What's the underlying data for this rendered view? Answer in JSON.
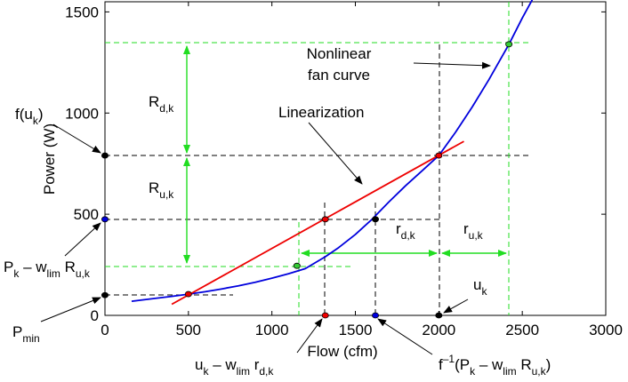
{
  "chart_data": {
    "type": "line",
    "xlabel": "Flow (cfm)",
    "ylabel": "Power (W)",
    "xlim": [
      0,
      3000
    ],
    "ylim": [
      0,
      1550
    ],
    "xticks": [
      0,
      500,
      1000,
      1500,
      2000,
      2500,
      3000
    ],
    "yticks": [
      0,
      500,
      1000,
      1500
    ],
    "grid": false,
    "series": [
      {
        "name": "Nonlinear fan curve",
        "color": "#0000dd",
        "x": [
          160,
          300,
          400,
          500,
          600,
          700,
          800,
          900,
          1000,
          1100,
          1200,
          1320,
          1400,
          1500,
          1600,
          1700,
          1800,
          1900,
          2000,
          2100,
          2200,
          2300,
          2420,
          2500,
          2560
        ],
        "y": [
          70,
          84,
          94,
          105,
          117,
          131,
          146,
          164,
          184,
          206,
          231,
          290,
          335,
          400,
          475,
          560,
          640,
          715,
          790,
          905,
          1030,
          1165,
          1340,
          1470,
          1560
        ]
      },
      {
        "name": "Linearization",
        "color": "#ee0000",
        "x": [
          400,
          2150
        ],
        "y": [
          55,
          860
        ]
      }
    ],
    "markers": [
      {
        "x": 500,
        "y": 105,
        "color": "#ee0000"
      },
      {
        "x": 1320,
        "y": 475,
        "color": "#ee0000"
      },
      {
        "x": 2000,
        "y": 790,
        "color": "#ee0000"
      },
      {
        "x": 1620,
        "y": 475,
        "color": "#000000"
      },
      {
        "x": 1150,
        "y": 245,
        "color": "#33cc33"
      },
      {
        "x": 2420,
        "y": 1340,
        "color": "#33cc33"
      },
      {
        "x": 0,
        "y": 790,
        "color": "#000000"
      },
      {
        "x": 0,
        "y": 475,
        "color": "#0000dd"
      },
      {
        "x": 0,
        "y": 100,
        "color": "#000000"
      },
      {
        "x": 1320,
        "y": 0,
        "color": "#ee0000"
      },
      {
        "x": 1620,
        "y": 0,
        "color": "#0000dd"
      },
      {
        "x": 2000,
        "y": 0,
        "color": "#000000"
      }
    ],
    "annotations": {
      "fan_curve": [
        "Nonlinear",
        "fan curve"
      ],
      "linearization": "Linearization",
      "f_uk": {
        "main": "f(u",
        "sub": "k",
        "close": ")"
      },
      "R_dk": {
        "main": "R",
        "sub": "d,k"
      },
      "R_uk": {
        "main": "R",
        "sub": "u,k"
      },
      "r_dk": {
        "main": "r",
        "sub": "d,k"
      },
      "r_uk": {
        "main": "r",
        "sub": "u,k"
      },
      "Pk_wlim_Ruk": {
        "p": "P",
        "p_sub": "k",
        "minus_w": " – w",
        "w_sub": "lim",
        "r": " R",
        "r_sub": "u,k"
      },
      "P_min": {
        "main": "P",
        "sub": "min"
      },
      "u_k": {
        "main": "u",
        "sub": "k"
      },
      "uk_wlim_rdk": {
        "u": "u",
        "u_sub": "k",
        "minus_w": " – w",
        "w_sub": "lim",
        "r": " r",
        "r_sub": "d,k"
      },
      "finv": {
        "f": "f",
        "sup": "–1",
        "open": "(P",
        "p_sub": "k",
        "minus_w": " – w",
        "w_sub": "lim",
        "r": " R",
        "r_sub": "u,k",
        "close": ")"
      }
    }
  }
}
